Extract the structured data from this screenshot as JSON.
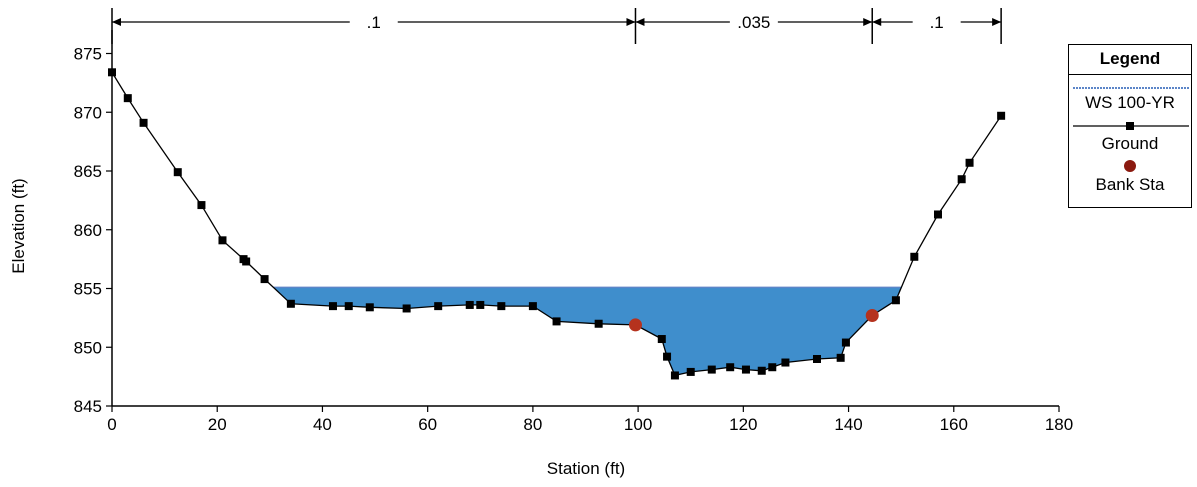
{
  "chart_data": {
    "type": "line",
    "title": "",
    "xlabel": "Station (ft)",
    "ylabel": "Elevation (ft)",
    "xlim": [
      0,
      180
    ],
    "ylim": [
      845,
      877
    ],
    "x_ticks": [
      0,
      20,
      40,
      60,
      80,
      100,
      120,
      140,
      160,
      180
    ],
    "y_ticks": [
      845,
      850,
      855,
      860,
      865,
      870,
      875
    ],
    "grid": false,
    "legend_position": "right",
    "legend_title": "Legend",
    "series": [
      {
        "name": "WS 100-YR",
        "kind": "water_surface",
        "elevation": 855.1,
        "color": "#5b85c8",
        "fill_color": "#3f8ecc"
      },
      {
        "name": "Ground",
        "kind": "line_markers",
        "color": "#000000",
        "points": [
          [
            0,
            873.4
          ],
          [
            3,
            871.2
          ],
          [
            6,
            869.1
          ],
          [
            12.5,
            864.9
          ],
          [
            17,
            862.1
          ],
          [
            21,
            859.1
          ],
          [
            25,
            857.5
          ],
          [
            25.5,
            857.3
          ],
          [
            29,
            855.8
          ],
          [
            34,
            853.7
          ],
          [
            42,
            853.5
          ],
          [
            45,
            853.5
          ],
          [
            49,
            853.4
          ],
          [
            56,
            853.3
          ],
          [
            62,
            853.5
          ],
          [
            68,
            853.6
          ],
          [
            70,
            853.6
          ],
          [
            74,
            853.5
          ],
          [
            80,
            853.5
          ],
          [
            84.5,
            852.2
          ],
          [
            92.5,
            852.0
          ],
          [
            99.5,
            851.9
          ],
          [
            104.5,
            850.7
          ],
          [
            105.5,
            849.2
          ],
          [
            107,
            847.6
          ],
          [
            110,
            847.9
          ],
          [
            114,
            848.1
          ],
          [
            117.5,
            848.3
          ],
          [
            120.5,
            848.1
          ],
          [
            123.5,
            848.0
          ],
          [
            125.5,
            848.3
          ],
          [
            128,
            848.7
          ],
          [
            134,
            849.0
          ],
          [
            138.5,
            849.1
          ],
          [
            139.5,
            850.4
          ],
          [
            144.5,
            852.7
          ],
          [
            149,
            854.0
          ],
          [
            152.5,
            857.7
          ],
          [
            157,
            861.3
          ],
          [
            161.5,
            864.3
          ],
          [
            163,
            865.7
          ],
          [
            169,
            869.7
          ]
        ]
      },
      {
        "name": "Bank Sta",
        "kind": "markers",
        "color": "#b5321e",
        "points": [
          [
            99.5,
            851.9
          ],
          [
            144.5,
            852.7
          ]
        ]
      }
    ],
    "mannings": {
      "start": 0,
      "end": 169,
      "breaks": [
        99.5,
        144.5
      ],
      "values": [
        ".1",
        ".035",
        ".1"
      ]
    }
  }
}
